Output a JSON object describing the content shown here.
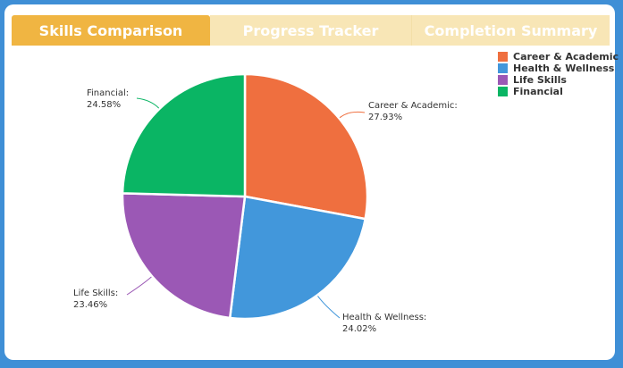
{
  "tabs": [
    {
      "label": "Skills Comparison",
      "active": true
    },
    {
      "label": "Progress Tracker",
      "active": false
    },
    {
      "label": "Completion Summary",
      "active": false
    }
  ],
  "chart_data": {
    "type": "pie",
    "categories": [
      "Career & Academic",
      "Health & Wellness",
      "Life Skills",
      "Financial"
    ],
    "values": [
      27.93,
      24.02,
      23.46,
      24.58
    ],
    "labels": [
      {
        "name": "Career & Academic:",
        "pct": "27.93%"
      },
      {
        "name": "Health & Wellness:",
        "pct": "24.02%"
      },
      {
        "name": "Life Skills:",
        "pct": "23.46%"
      },
      {
        "name": "Financial:",
        "pct": "24.58%"
      }
    ],
    "colors": [
      "#ef6f3f",
      "#4297db",
      "#9b58b5",
      "#0ab564"
    ],
    "legend_position": "top-right",
    "title": ""
  },
  "colors": {
    "background": "#3f8fd6",
    "panel": "#ffffff",
    "tab_active": "#f0b542",
    "tab_inactive": "#f8e6b6"
  }
}
